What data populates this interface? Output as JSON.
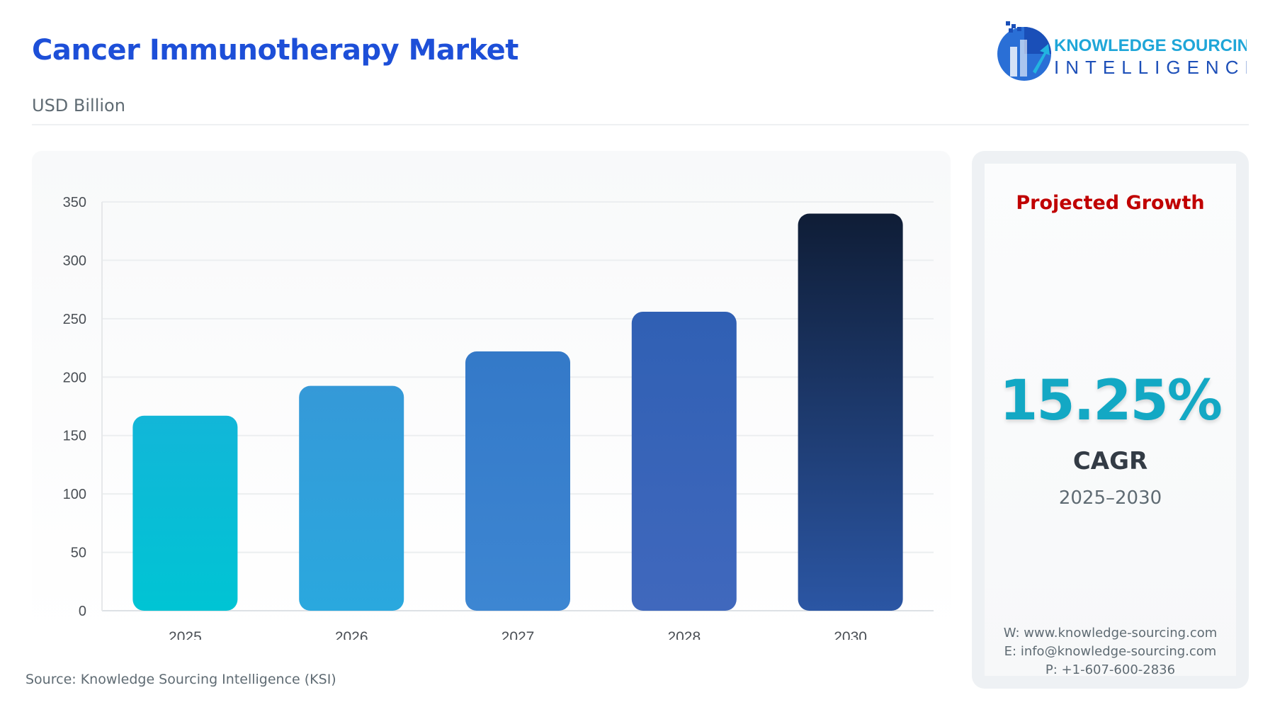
{
  "header": {
    "title": "Cancer Immunotherapy Market",
    "unit": "USD Billion"
  },
  "logo": {
    "line1": "KNOWLEDGE SOURCING",
    "line2": "INTELLIGENCE"
  },
  "chart_data": {
    "type": "bar",
    "categories": [
      "2025",
      "2026",
      "2027",
      "2028",
      "2030"
    ],
    "values": [
      167,
      192.5,
      222,
      256,
      340
    ],
    "ylim": [
      0,
      350
    ],
    "yticks": [
      0,
      50,
      100,
      150,
      200,
      250,
      300,
      350
    ],
    "grid": true,
    "colors": [
      [
        "#00c4d4",
        "#12b6d8"
      ],
      [
        "#2aa8de",
        "#3599d8"
      ],
      [
        "#3d86d2",
        "#3479c8"
      ],
      [
        "#4068bd",
        "#3060b4"
      ],
      [
        "#2b56a4",
        "#0f1d36"
      ]
    ]
  },
  "side": {
    "projected": "Projected Growth",
    "cagr_value": "15.25%",
    "cagr_label": "CAGR",
    "period": "2025–2030",
    "web": "W: www.knowledge-sourcing.com",
    "email": "E: info@knowledge-sourcing.com",
    "phone": "P: +1-607-600-2836"
  },
  "source": "Source: Knowledge Sourcing Intelligence (KSI)"
}
